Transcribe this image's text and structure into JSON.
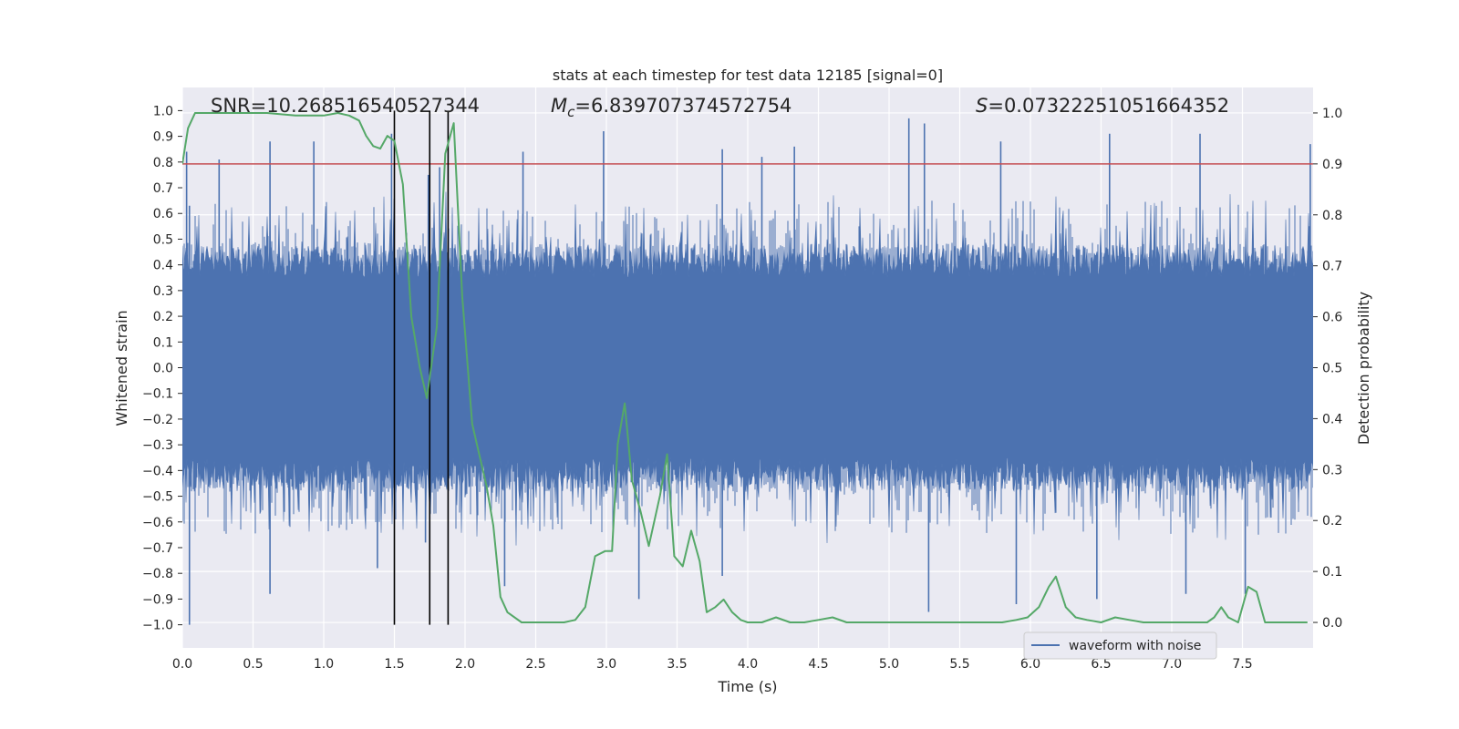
{
  "chart_data": {
    "type": "line",
    "title": "stats at each timestep for test data 12185 [signal=0]",
    "xlabel": "Time (s)",
    "ylabel": "Whitened strain",
    "y2label": "Detection probability",
    "xlim": [
      0.0,
      8.0
    ],
    "ylim": [
      -1.09,
      1.09
    ],
    "y2lim": [
      -0.05,
      1.05
    ],
    "x_ticks": [
      0.0,
      0.5,
      1.0,
      1.5,
      2.0,
      2.5,
      3.0,
      3.5,
      4.0,
      4.5,
      5.0,
      5.5,
      6.0,
      6.5,
      7.0,
      7.5
    ],
    "x_tick_labels": [
      "0.0",
      "0.5",
      "1.0",
      "1.5",
      "2.0",
      "2.5",
      "3.0",
      "3.5",
      "4.0",
      "4.5",
      "5.0",
      "5.5",
      "6.0",
      "6.5",
      "7.0",
      "7.5"
    ],
    "y_ticks": [
      1.0,
      0.9,
      0.8,
      0.7,
      0.6,
      0.5,
      0.4,
      0.3,
      0.2,
      0.1,
      0.0,
      -0.1,
      -0.2,
      -0.3,
      -0.4,
      -0.5,
      -0.6,
      -0.7,
      -0.8,
      -0.9,
      -1.0
    ],
    "y_tick_labels": [
      "1.0",
      "0.9",
      "0.8",
      "0.7",
      "0.6",
      "0.5",
      "0.4",
      "0.3",
      "0.2",
      "0.1",
      "0.0",
      "−0.1",
      "−0.2",
      "−0.3",
      "−0.4",
      "−0.5",
      "−0.6",
      "−0.7",
      "−0.8",
      "−0.9",
      "−1.0"
    ],
    "y2_ticks": [
      1.0,
      0.9,
      0.8,
      0.7,
      0.6,
      0.5,
      0.4,
      0.3,
      0.2,
      0.1,
      0.0
    ],
    "y2_tick_labels": [
      "1.0",
      "0.9",
      "0.8",
      "0.7",
      "0.6",
      "0.5",
      "0.4",
      "0.3",
      "0.2",
      "0.1",
      "0.0"
    ],
    "annotations": {
      "snr": "SNR=10.268516540527344",
      "mc_symbol": "M",
      "mc_subscript": "c",
      "mc_value": "=6.839707374572754",
      "s_symbol": "S",
      "s_value": "=0.07322251051664352"
    },
    "legend": {
      "label": "waveform with noise",
      "location": "lower-right"
    },
    "threshold": {
      "value": 0.9,
      "axis": "right",
      "color": "#c44e52"
    },
    "vertical_lines": {
      "x": [
        1.5,
        1.75,
        1.88
      ],
      "y_range": [
        -1.0,
        1.0
      ],
      "color": "#000000"
    },
    "waveform": {
      "name": "waveform with noise",
      "color": "#4c72b0",
      "x_range": [
        0.0,
        8.0
      ],
      "core_amplitude": 0.35,
      "spikes_up": [
        [
          0.03,
          0.84
        ],
        [
          0.05,
          0.63
        ],
        [
          0.26,
          0.81
        ],
        [
          0.62,
          0.88
        ],
        [
          0.93,
          0.88
        ],
        [
          1.48,
          0.91
        ],
        [
          1.74,
          0.75
        ],
        [
          1.82,
          0.78
        ],
        [
          2.41,
          0.84
        ],
        [
          2.98,
          0.92
        ],
        [
          3.82,
          0.85
        ],
        [
          4.1,
          0.82
        ],
        [
          4.33,
          0.86
        ],
        [
          5.14,
          0.97
        ],
        [
          5.25,
          0.95
        ],
        [
          5.79,
          0.88
        ],
        [
          6.56,
          0.91
        ],
        [
          7.2,
          0.91
        ],
        [
          7.98,
          0.87
        ]
      ],
      "spikes_down": [
        [
          0.05,
          -1.0
        ],
        [
          0.62,
          -0.88
        ],
        [
          1.38,
          -0.78
        ],
        [
          1.72,
          -0.68
        ],
        [
          2.28,
          -0.85
        ],
        [
          3.23,
          -0.9
        ],
        [
          3.82,
          -0.81
        ],
        [
          5.28,
          -0.95
        ],
        [
          5.9,
          -0.92
        ],
        [
          6.47,
          -0.9
        ],
        [
          7.1,
          -0.88
        ],
        [
          7.52,
          -0.88
        ]
      ]
    },
    "series": [
      {
        "name": "detection probability",
        "color": "#55a868",
        "axis": "right",
        "x": [
          0.0,
          0.04,
          0.09,
          0.2,
          0.4,
          0.6,
          0.8,
          1.0,
          1.1,
          1.18,
          1.25,
          1.3,
          1.35,
          1.4,
          1.45,
          1.5,
          1.56,
          1.62,
          1.68,
          1.73,
          1.8,
          1.86,
          1.92,
          1.98,
          2.05,
          2.1,
          2.15,
          2.2,
          2.25,
          2.3,
          2.4,
          2.5,
          2.6,
          2.7,
          2.78,
          2.85,
          2.92,
          2.99,
          3.04,
          3.08,
          3.13,
          3.18,
          3.24,
          3.3,
          3.38,
          3.43,
          3.48,
          3.54,
          3.6,
          3.66,
          3.71,
          3.77,
          3.83,
          3.89,
          3.95,
          4.0,
          4.05,
          4.1,
          4.2,
          4.3,
          4.4,
          4.5,
          4.6,
          4.7,
          4.8,
          4.9,
          5.0,
          5.1,
          5.3,
          5.5,
          5.7,
          5.8,
          5.9,
          5.98,
          6.06,
          6.13,
          6.18,
          6.25,
          6.32,
          6.4,
          6.5,
          6.6,
          6.7,
          6.8,
          6.9,
          7.0,
          7.1,
          7.2,
          7.25,
          7.3,
          7.35,
          7.4,
          7.47,
          7.54,
          7.6,
          7.66,
          7.75,
          7.85,
          7.96
        ],
        "y": [
          0.9,
          0.97,
          1.0,
          1.0,
          1.0,
          1.0,
          0.995,
          0.995,
          1.0,
          0.995,
          0.985,
          0.955,
          0.935,
          0.93,
          0.955,
          0.945,
          0.86,
          0.6,
          0.5,
          0.44,
          0.58,
          0.92,
          0.98,
          0.64,
          0.39,
          0.33,
          0.27,
          0.19,
          0.05,
          0.02,
          0.0,
          0.0,
          0.0,
          0.0,
          0.005,
          0.03,
          0.13,
          0.14,
          0.14,
          0.35,
          0.43,
          0.28,
          0.22,
          0.15,
          0.25,
          0.33,
          0.13,
          0.11,
          0.18,
          0.12,
          0.02,
          0.03,
          0.045,
          0.02,
          0.005,
          0.0,
          0.0,
          0.0,
          0.01,
          0.0,
          0.0,
          0.005,
          0.01,
          0.0,
          0.0,
          0.0,
          0.0,
          0.0,
          0.0,
          0.0,
          0.0,
          0.0,
          0.005,
          0.01,
          0.03,
          0.07,
          0.09,
          0.03,
          0.01,
          0.005,
          0.0,
          0.01,
          0.005,
          0.0,
          0.0,
          0.0,
          0.0,
          0.0,
          0.0,
          0.01,
          0.03,
          0.01,
          0.0,
          0.07,
          0.06,
          0.0,
          0.0,
          0.0,
          0.0
        ]
      }
    ]
  }
}
